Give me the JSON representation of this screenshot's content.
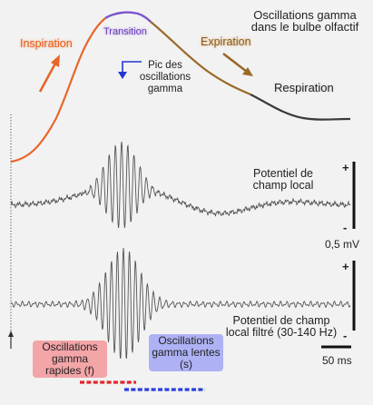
{
  "title": "Oscillations gamma dans le bulbe olfactif",
  "phases": {
    "inspiration": "Inspiration",
    "transition": "Transition",
    "expiration": "Expiration",
    "respiration": "Respiration"
  },
  "peak_label": "Pic des oscillations gamma",
  "traces": {
    "lfp": "Potentiel de champ local",
    "lfp_filtered": "Potentiel de champ local filtré (30-140 Hz)"
  },
  "bands": {
    "fast": "Oscillations gamma rapides (f)",
    "slow": "Oscillations gamma lentes (s)"
  },
  "scale": {
    "plus": "+",
    "minus": "-",
    "voltage": "0,5 mV",
    "time": "50 ms"
  },
  "colors": {
    "inspiration": "#e8662a",
    "transition": "#7b55d0",
    "expiration": "#9a6a2a",
    "respiration": "#3a3a3a",
    "fast": "#e3262b",
    "slow": "#2a3ee0"
  }
}
